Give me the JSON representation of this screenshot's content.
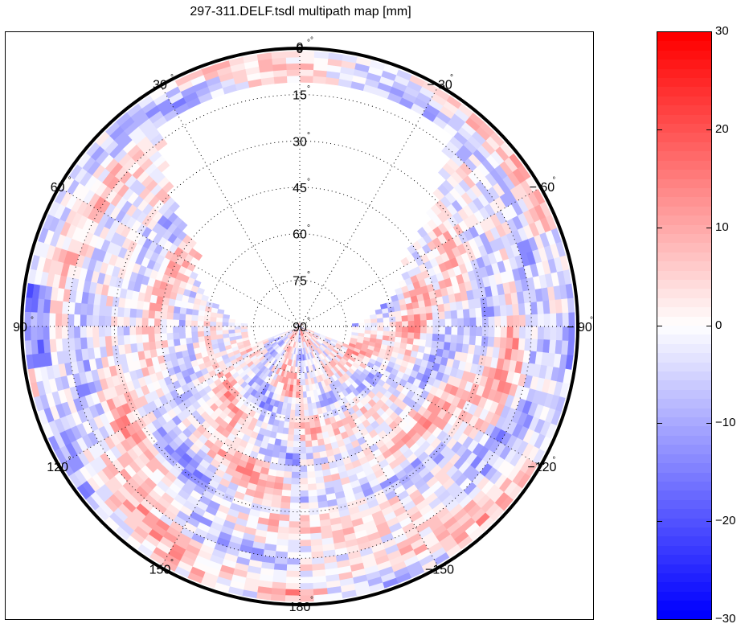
{
  "chart_data": {
    "type": "heatmap",
    "subtype": "polar-skyplot",
    "title": "297-311.DELF.tsdl multipath map [mm]",
    "azimuth_labels": [
      {
        "angle": 0,
        "text": "0"
      },
      {
        "angle": 30,
        "text": "30"
      },
      {
        "angle": 60,
        "text": "60"
      },
      {
        "angle": 90,
        "text": "90"
      },
      {
        "angle": 120,
        "text": "120"
      },
      {
        "angle": 150,
        "text": "150"
      },
      {
        "angle": 180,
        "text": "180"
      },
      {
        "angle": -150,
        "text": "−150"
      },
      {
        "angle": -120,
        "text": "−120"
      },
      {
        "angle": -90,
        "text": "− 90"
      },
      {
        "angle": -60,
        "text": "− 60"
      },
      {
        "angle": -30,
        "text": "− 30"
      }
    ],
    "elevation_labels": [
      "0",
      "15",
      "30",
      "45",
      "60",
      "75",
      "90"
    ],
    "elevation_range": [
      0,
      90
    ],
    "degree_symbol": "°",
    "grid": true,
    "data_coverage_note": "No data in northern sector between azimuth ~ -40 and 35 deg above ~10 deg elevation",
    "colorbar": {
      "position": "right",
      "range": [
        -30,
        30
      ],
      "ticks": [
        30,
        20,
        10,
        0,
        -10,
        -20,
        -30
      ],
      "tick_labels": [
        "30",
        "20",
        "10",
        "0",
        "−10",
        "−20",
        "−30"
      ],
      "levels": 64,
      "colors": {
        "min": "#0000ff",
        "mid": "#ffffff",
        "max": "#ff0000"
      }
    },
    "values_description": "Multipath residuals in mm, mostly between -15 and +15, with pockets near -25 (west at low elevation) and +20 (south, east)"
  }
}
